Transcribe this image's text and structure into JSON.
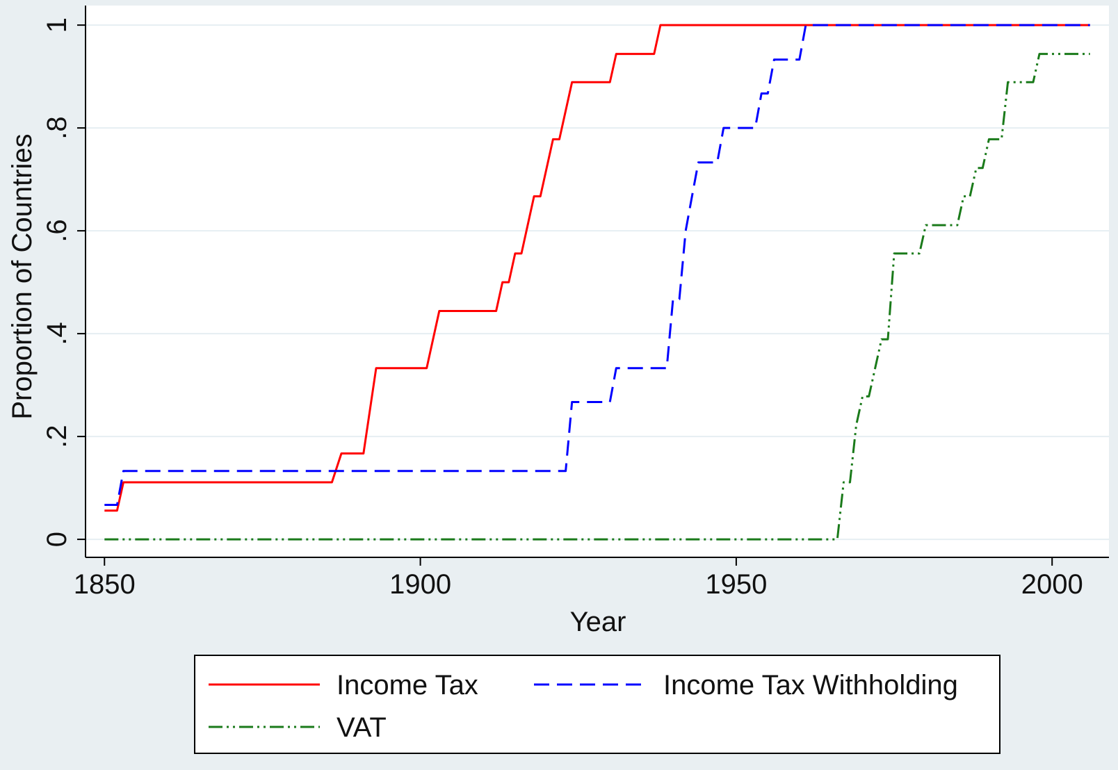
{
  "chart_data": {
    "type": "line",
    "title": "",
    "xlabel": "Year",
    "ylabel": "Proportion of Countries",
    "xlim": [
      1847,
      2009
    ],
    "ylim": [
      -0.035,
      1.038
    ],
    "xticks": [
      1850,
      1900,
      1950,
      2000
    ],
    "xtick_labels": [
      "1850",
      "1900",
      "1950",
      "2000"
    ],
    "yticks": [
      0,
      0.2,
      0.4,
      0.6,
      0.8,
      1
    ],
    "ytick_labels": [
      "0",
      ".2",
      ".4",
      ".6",
      ".8",
      "1"
    ],
    "grid": true,
    "legend_position": "bottom",
    "series": [
      {
        "name": "Income Tax",
        "color": "#ff0000",
        "style": "solid",
        "points": [
          [
            1850,
            0.056
          ],
          [
            1852,
            0.056
          ],
          [
            1853,
            0.111
          ],
          [
            1886,
            0.111
          ],
          [
            1887.5,
            0.167
          ],
          [
            1891,
            0.167
          ],
          [
            1893,
            0.333
          ],
          [
            1901,
            0.333
          ],
          [
            1903,
            0.444
          ],
          [
            1912,
            0.444
          ],
          [
            1913,
            0.5
          ],
          [
            1914,
            0.5
          ],
          [
            1915,
            0.556
          ],
          [
            1916,
            0.556
          ],
          [
            1918,
            0.667
          ],
          [
            1919,
            0.667
          ],
          [
            1921,
            0.778
          ],
          [
            1922,
            0.778
          ],
          [
            1924,
            0.889
          ],
          [
            1930,
            0.889
          ],
          [
            1931,
            0.944
          ],
          [
            1937,
            0.944
          ],
          [
            1938,
            1.0
          ],
          [
            2006,
            1.0
          ]
        ]
      },
      {
        "name": "Income Tax Withholding",
        "color": "#0000ff",
        "style": "dashed",
        "points": [
          [
            1850,
            0.067
          ],
          [
            1852,
            0.067
          ],
          [
            1853,
            0.133
          ],
          [
            1923,
            0.133
          ],
          [
            1924,
            0.267
          ],
          [
            1930,
            0.267
          ],
          [
            1931,
            0.333
          ],
          [
            1939,
            0.333
          ],
          [
            1940,
            0.467
          ],
          [
            1941,
            0.467
          ],
          [
            1942,
            0.6
          ],
          [
            1943,
            0.667
          ],
          [
            1944,
            0.733
          ],
          [
            1947,
            0.733
          ],
          [
            1948,
            0.8
          ],
          [
            1953,
            0.8
          ],
          [
            1954,
            0.867
          ],
          [
            1955,
            0.867
          ],
          [
            1956,
            0.933
          ],
          [
            1960,
            0.933
          ],
          [
            1961,
            1.0
          ],
          [
            2006,
            1.0
          ]
        ]
      },
      {
        "name": "VAT",
        "color": "#1a7a1a",
        "style": "dash-dot-dot",
        "points": [
          [
            1850,
            0.0
          ],
          [
            1966,
            0.0
          ],
          [
            1967,
            0.111
          ],
          [
            1968,
            0.111
          ],
          [
            1969,
            0.222
          ],
          [
            1970,
            0.278
          ],
          [
            1971,
            0.278
          ],
          [
            1973,
            0.389
          ],
          [
            1974,
            0.389
          ],
          [
            1975,
            0.556
          ],
          [
            1979,
            0.556
          ],
          [
            1980,
            0.611
          ],
          [
            1985,
            0.611
          ],
          [
            1986,
            0.667
          ],
          [
            1987,
            0.667
          ],
          [
            1988,
            0.722
          ],
          [
            1989,
            0.722
          ],
          [
            1990,
            0.778
          ],
          [
            1992,
            0.778
          ],
          [
            1993,
            0.889
          ],
          [
            1997,
            0.889
          ],
          [
            1998,
            0.944
          ],
          [
            2006,
            0.944
          ]
        ]
      }
    ]
  }
}
